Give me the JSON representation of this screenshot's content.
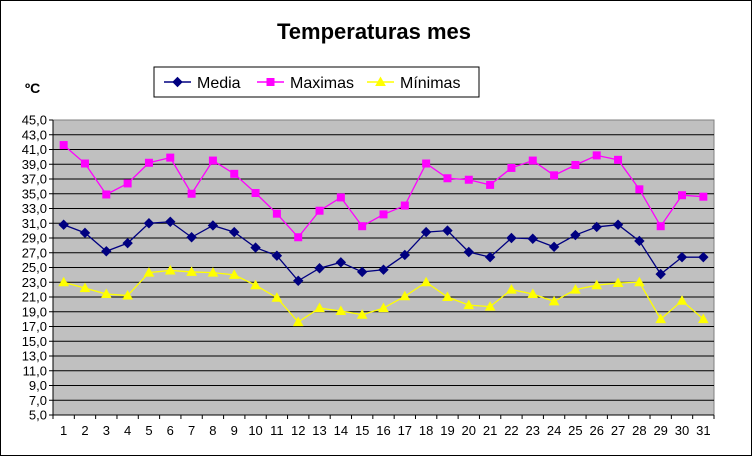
{
  "chart_data": {
    "type": "line",
    "title": "Temperaturas mes",
    "ylabel": "ºC",
    "xlabel": "",
    "ylim": [
      5.0,
      45.0
    ],
    "ytick_step": 2.0,
    "y_ticks": [
      "5,0",
      "7,0",
      "9,0",
      "11,0",
      "13,0",
      "15,0",
      "17,0",
      "19,0",
      "21,0",
      "23,0",
      "25,0",
      "27,0",
      "29,0",
      "31,0",
      "33,0",
      "35,0",
      "37,0",
      "39,0",
      "41,0",
      "43,0",
      "45,0"
    ],
    "grid": true,
    "legend_position": "top",
    "plot_background": "#c0c0c0",
    "categories": [
      "1",
      "2",
      "3",
      "4",
      "5",
      "6",
      "7",
      "8",
      "9",
      "10",
      "11",
      "12",
      "13",
      "14",
      "15",
      "16",
      "17",
      "18",
      "19",
      "20",
      "21",
      "22",
      "23",
      "24",
      "25",
      "26",
      "27",
      "28",
      "29",
      "30",
      "31"
    ],
    "series": [
      {
        "name": "Media",
        "color": "#000080",
        "marker": "diamond",
        "values": [
          30.8,
          29.7,
          27.2,
          28.3,
          31.0,
          31.2,
          29.1,
          30.7,
          29.8,
          27.7,
          26.6,
          23.2,
          24.9,
          25.7,
          24.4,
          24.7,
          26.7,
          29.8,
          30.0,
          27.1,
          26.4,
          29.0,
          28.9,
          27.8,
          29.4,
          30.5,
          30.8,
          28.6,
          24.1,
          26.4,
          26.4
        ]
      },
      {
        "name": "Maximas",
        "color": "#ff00ff",
        "marker": "square",
        "values": [
          41.6,
          39.1,
          34.9,
          36.4,
          39.2,
          39.9,
          35.0,
          39.5,
          37.7,
          35.1,
          32.3,
          29.1,
          32.7,
          34.5,
          30.6,
          32.2,
          33.4,
          39.1,
          37.1,
          36.9,
          36.2,
          38.5,
          39.5,
          37.5,
          38.9,
          40.2,
          39.6,
          35.6,
          30.6,
          34.8,
          34.6
        ]
      },
      {
        "name": "Mínimas",
        "color": "#ffff00",
        "marker": "triangle",
        "values": [
          23.0,
          22.2,
          21.4,
          21.2,
          24.3,
          24.6,
          24.4,
          24.3,
          24.0,
          22.6,
          20.9,
          17.6,
          19.5,
          19.1,
          18.6,
          19.5,
          21.1,
          23.0,
          21.0,
          19.9,
          19.7,
          22.0,
          21.4,
          20.4,
          22.0,
          22.6,
          22.9,
          23.0,
          18.0,
          20.5,
          18.0
        ]
      }
    ]
  }
}
